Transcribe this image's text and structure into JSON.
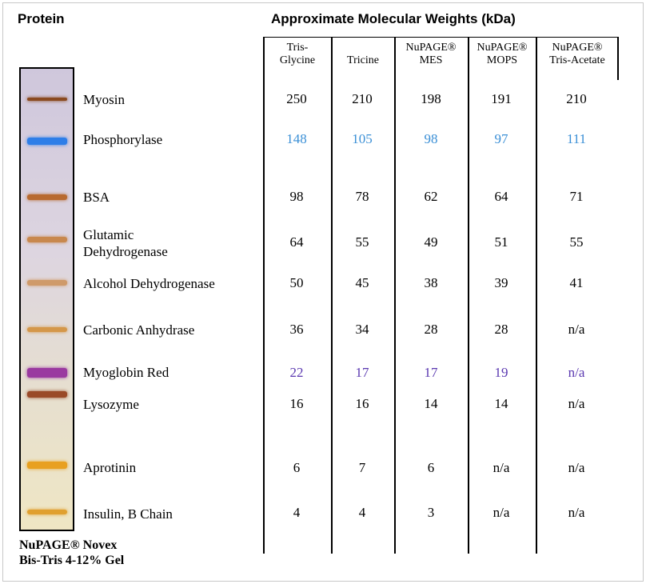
{
  "header": {
    "protein_label": "Protein",
    "title": "Approximate Molecular Weights (kDa)"
  },
  "columns": [
    {
      "line1": "Tris-",
      "line2": "Glycine"
    },
    {
      "line1": "Tricine",
      "line2": ""
    },
    {
      "line1": "NuPAGE®",
      "line2": "MES"
    },
    {
      "line1": "NuPAGE®",
      "line2": "MOPS"
    },
    {
      "line1": "NuPAGE®",
      "line2": "Tris-Acetate"
    }
  ],
  "proteins": [
    {
      "name": "Myosin",
      "values": [
        "250",
        "210",
        "198",
        "191",
        "210"
      ],
      "color": "#000000",
      "band_color": "#8a4a20"
    },
    {
      "name": "Phosphorylase",
      "values": [
        "148",
        "105",
        "98",
        "97",
        "111"
      ],
      "color": "#3a8fd6",
      "band_color": "#2e7ee8"
    },
    {
      "name": "BSA",
      "values": [
        "98",
        "78",
        "62",
        "64",
        "71"
      ],
      "color": "#000000",
      "band_color": "#b86a30"
    },
    {
      "name": "Glutamic Dehydrogenase",
      "values": [
        "64",
        "55",
        "49",
        "51",
        "55"
      ],
      "color": "#000000",
      "band_color": "#c8884e"
    },
    {
      "name": "Alcohol Dehydrogenase",
      "values": [
        "50",
        "45",
        "38",
        "39",
        "41"
      ],
      "color": "#000000",
      "band_color": "#cf9a6a"
    },
    {
      "name": "Carbonic Anhydrase",
      "values": [
        "36",
        "34",
        "28",
        "28",
        "n/a"
      ],
      "color": "#000000",
      "band_color": "#d4974a"
    },
    {
      "name": "Myoglobin Red",
      "values": [
        "22",
        "17",
        "17",
        "19",
        "n/a"
      ],
      "color": "#5a38b0",
      "band_color": "#9a3aa0"
    },
    {
      "name": "Lysozyme",
      "values": [
        "16",
        "16",
        "14",
        "14",
        "n/a"
      ],
      "color": "#000000",
      "band_color": "#9a4a28"
    },
    {
      "name": "Aprotinin",
      "values": [
        "6",
        "7",
        "6",
        "n/a",
        "n/a"
      ],
      "color": "#000000",
      "band_color": "#e8a020"
    },
    {
      "name": "Insulin, B Chain",
      "values": [
        "4",
        "4",
        "3",
        "n/a",
        "n/a"
      ],
      "color": "#000000",
      "band_color": "#e0a030"
    }
  ],
  "footer": {
    "line1": "NuPAGE® Novex",
    "line2": "Bis-Tris 4-12% Gel"
  }
}
